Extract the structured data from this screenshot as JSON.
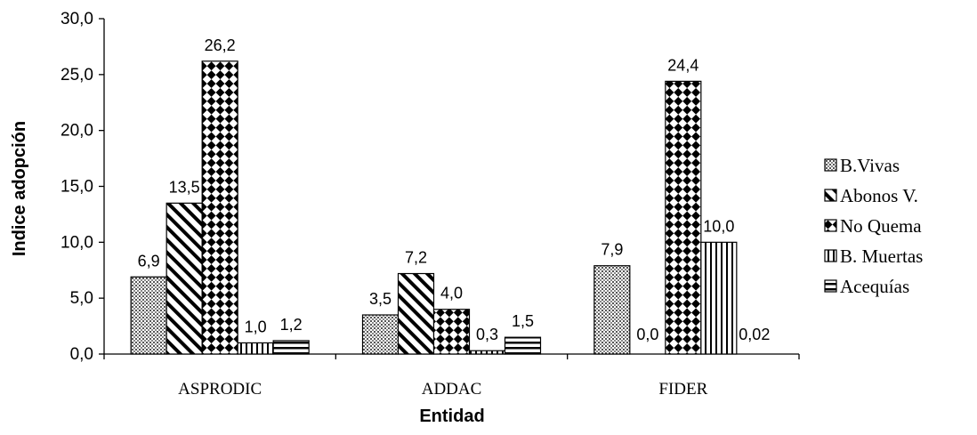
{
  "chart_data": {
    "type": "bar",
    "xlabel": "Entidad",
    "ylabel": "Indice adopción",
    "ylim": [
      0,
      30
    ],
    "yticks": [
      "0,0",
      "5,0",
      "10,0",
      "15,0",
      "20,0",
      "25,0",
      "30,0"
    ],
    "categories": [
      "ASPRODIC",
      "ADDAC",
      "FIDER"
    ],
    "legend_position": "right",
    "grid": false,
    "series": [
      {
        "name": "B.Vivas",
        "pattern": "dots",
        "values": [
          6.9,
          3.5,
          7.9
        ],
        "labels": [
          "6,9",
          "3,5",
          "7,9"
        ]
      },
      {
        "name": "Abonos V.",
        "pattern": "diagonal",
        "values": [
          13.5,
          7.2,
          0.0
        ],
        "labels": [
          "13,5",
          "7,2",
          "0,0"
        ]
      },
      {
        "name": "No Quema",
        "pattern": "checker",
        "values": [
          26.2,
          4.0,
          24.4
        ],
        "labels": [
          "26,2",
          "4,0",
          "24,4"
        ]
      },
      {
        "name": "B. Muertas",
        "pattern": "vertical",
        "values": [
          1.0,
          0.3,
          10.0
        ],
        "labels": [
          "1,0",
          "0,3",
          "10,0"
        ]
      },
      {
        "name": "Acequías",
        "pattern": "horizontal",
        "values": [
          1.2,
          1.5,
          0.02
        ],
        "labels": [
          "1,2",
          "1,5",
          "0,02"
        ]
      }
    ]
  }
}
